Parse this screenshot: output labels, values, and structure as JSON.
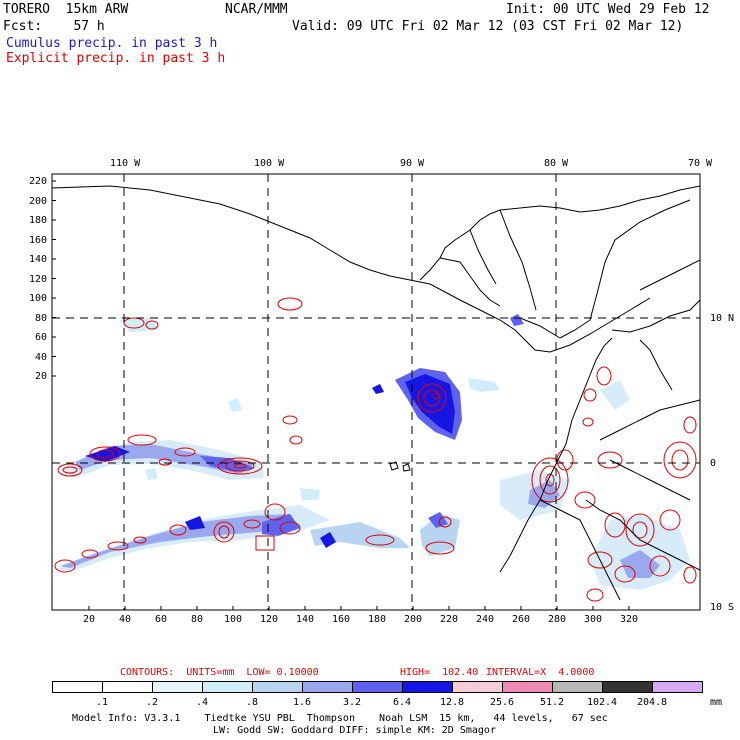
{
  "header": {
    "model": "TORERO  15km ARW",
    "org": "NCAR/MMM",
    "init": "Init: 00 UTC Wed 29 Feb 12",
    "fcst": "Fcst:    57 h",
    "valid": "Valid: 09 UTC Fri 02 Mar 12 (03 CST Fri 02 Mar 12)",
    "cumulus": "Cumulus precip. in past 3 h",
    "explicit": "Explicit precip. in past 3 h"
  },
  "axes": {
    "top_lon_labels": [
      "110 W",
      "100 W",
      "90 W",
      "80 W",
      "70 W"
    ],
    "right_lat_labels": [
      "10 N",
      "0",
      "10 S"
    ],
    "left_grid_labels": [
      "220",
      "200",
      "180",
      "160",
      "140",
      "120",
      "100",
      "80",
      "60",
      "40",
      "20"
    ],
    "bottom_grid_labels": [
      "20",
      "40",
      "60",
      "80",
      "100",
      "120",
      "140",
      "160",
      "180",
      "200",
      "220",
      "240",
      "260",
      "280",
      "300",
      "320"
    ]
  },
  "contour_info": {
    "contours": "CONTOURS:  UNITS=mm  LOW= 0.10000",
    "high": "HIGH=  102.40",
    "interval": "INTERVAL=X  4.0000"
  },
  "legend": {
    "labels": [
      ".1",
      ".2",
      ".4",
      ".8",
      "1.6",
      "3.2",
      "6.4",
      "12.8",
      "25.6",
      "51.2",
      "102.4",
      "204.8"
    ],
    "unit": "mm",
    "colors": [
      "#ffffff",
      "#ffffff",
      "#e6f4fb",
      "#cfeefa",
      "#b9d4f0",
      "#9aa8f0",
      "#5e62ee",
      "#1515e6",
      "#f6cdd6",
      "#f08bb5",
      "#b8b8b8",
      "#333333",
      "#d8a8f4"
    ]
  },
  "footer": {
    "line1": "Model Info: V3.3.1    Tiedtke YSU PBL  Thompson    Noah LSM  15 km,   44 levels,   67 sec",
    "line2": "LW: Godd SW: Goddard DIFF: simple KM: 2D Smagor"
  },
  "colors": {
    "cumulus": "#1a1ad0",
    "explicit": "#e00000",
    "grid": "#000000"
  }
}
